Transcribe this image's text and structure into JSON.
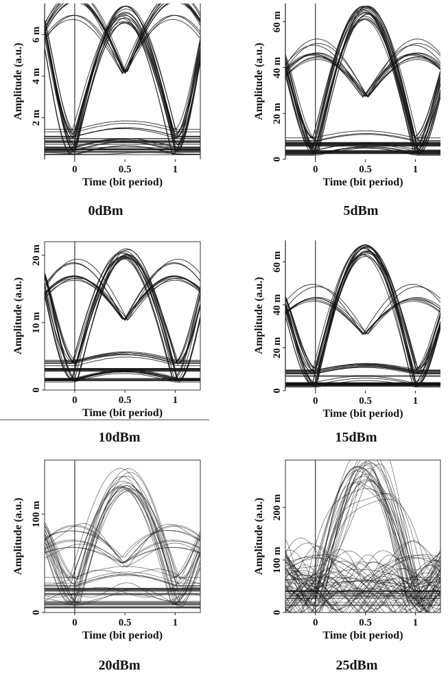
{
  "figure": {
    "panels": [
      {
        "caption": "0dBm",
        "xlabel": "Time (bit period)",
        "ylabel": "Amplitude (a.u.)"
      },
      {
        "caption": "5dBm",
        "xlabel": "Time (bit period)",
        "ylabel": "Amplitude (a.u.)"
      },
      {
        "caption": "10dBm",
        "xlabel": "Time (bit period)",
        "ylabel": "Amplitude (a.u.)"
      },
      {
        "caption": "15dBm",
        "xlabel": "Time (bit period)",
        "ylabel": "Amplitude (a.u.)"
      },
      {
        "caption": "20dBm",
        "xlabel": "Time (bit period)",
        "ylabel": "Amplitude (a.u.)"
      },
      {
        "caption": "25dBm",
        "xlabel": "Time (bit period)",
        "ylabel": "Amplitude (a.u.)"
      }
    ]
  },
  "chart_data": [
    {
      "type": "line",
      "subtype": "eye diagram",
      "caption": "0dBm",
      "xlabel": "Time (bit period)",
      "ylabel": "Amplitude (a.u.)",
      "xlim": [
        -0.3,
        1.25
      ],
      "ylim": [
        0,
        0.0075
      ],
      "xticks": [
        0,
        0.5,
        1
      ],
      "xtick_labels": [
        "0",
        "0.5",
        "1"
      ],
      "yticks": [
        0.002,
        0.004,
        0.006
      ],
      "ytick_labels": [
        "2 m",
        "4 m",
        "6 m"
      ],
      "eye": {
        "peak": 0.0071,
        "crossing": 0.0041,
        "low": 0.0012,
        "floor": 0.0004,
        "spread": 0.0006,
        "noise": 0.05
      },
      "frame": "left-right",
      "zero_line": true
    },
    {
      "type": "line",
      "subtype": "eye diagram",
      "caption": "5dBm",
      "xlabel": "Time (bit period)",
      "ylabel": "Amplitude (a.u.)",
      "xlim": [
        -0.3,
        1.25
      ],
      "ylim": [
        0,
        0.068
      ],
      "xticks": [
        0,
        0.5,
        1
      ],
      "xtick_labels": [
        "0",
        "0.5",
        "1"
      ],
      "yticks": [
        0,
        0.02,
        0.04,
        0.06
      ],
      "ytick_labels": [
        "0",
        "20 m",
        "40 m",
        "60 m"
      ],
      "eye": {
        "peak": 0.064,
        "crossing": 0.027,
        "low": 0.009,
        "floor": 0.003,
        "spread": 0.003,
        "noise": 0.05
      },
      "frame": "left",
      "zero_line": true
    },
    {
      "type": "line",
      "subtype": "eye diagram",
      "caption": "10dBm",
      "xlabel": "Time (bit period)",
      "ylabel": "Amplitude (a.u.)",
      "xlim": [
        -0.3,
        1.25
      ],
      "ylim": [
        0,
        0.022
      ],
      "xticks": [
        0,
        0.5,
        1
      ],
      "xtick_labels": [
        "0",
        "0.5",
        "1"
      ],
      "yticks": [
        0,
        0.01,
        0.02
      ],
      "ytick_labels": [
        "0",
        "10 m",
        "20 m"
      ],
      "eye": {
        "peak": 0.0203,
        "crossing": 0.0103,
        "low": 0.004,
        "floor": 0.0015,
        "spread": 0.0008,
        "noise": 0.05
      },
      "frame": "box",
      "zero_line": true
    },
    {
      "type": "line",
      "subtype": "eye diagram",
      "caption": "15dBm",
      "xlabel": "Time (bit period)",
      "ylabel": "Amplitude (a.u.)",
      "xlim": [
        -0.3,
        1.25
      ],
      "ylim": [
        0,
        0.07
      ],
      "xticks": [
        0,
        0.5,
        1
      ],
      "xtick_labels": [
        "0",
        "0.5",
        "1"
      ],
      "yticks": [
        0,
        0.02,
        0.04,
        0.06
      ],
      "ytick_labels": [
        "0",
        "20 m",
        "40 m",
        "60 m"
      ],
      "eye": {
        "peak": 0.065,
        "crossing": 0.026,
        "low": 0.009,
        "floor": 0.003,
        "spread": 0.003,
        "noise": 0.05
      },
      "frame": "left",
      "zero_line": true
    },
    {
      "type": "line",
      "subtype": "eye diagram",
      "caption": "20dBm",
      "xlabel": "Time (bit period)",
      "ylabel": "Amplitude (a.u.)",
      "xlim": [
        -0.3,
        1.25
      ],
      "ylim": [
        0,
        0.155
      ],
      "xticks": [
        0,
        0.5,
        1
      ],
      "xtick_labels": [
        "0",
        "0.5",
        "1"
      ],
      "yticks": [
        0,
        0.1
      ],
      "ytick_labels": [
        "0",
        "100 m"
      ],
      "eye": {
        "peak": 0.135,
        "crossing": 0.05,
        "low": 0.03,
        "floor": 0.008,
        "spread": 0.012,
        "noise": 0.3
      },
      "frame": "box",
      "zero_line": true
    },
    {
      "type": "line",
      "subtype": "eye diagram",
      "caption": "25dBm",
      "xlabel": "Time (bit period)",
      "ylabel": "Amplitude (a.u.)",
      "xlim": [
        -0.3,
        1.25
      ],
      "ylim": [
        0,
        0.29
      ],
      "xticks": [
        0,
        0.5,
        1
      ],
      "xtick_labels": [
        "0",
        "0.5",
        "1"
      ],
      "yticks": [
        0,
        0.1,
        0.2
      ],
      "ytick_labels": [
        "0",
        "100 m",
        "200 m"
      ],
      "eye": {
        "peak": 0.27,
        "crossing": 0.06,
        "low": 0.05,
        "floor": 0.012,
        "spread": 0.03,
        "noise": 1.0
      },
      "frame": "box",
      "zero_line": true
    }
  ]
}
